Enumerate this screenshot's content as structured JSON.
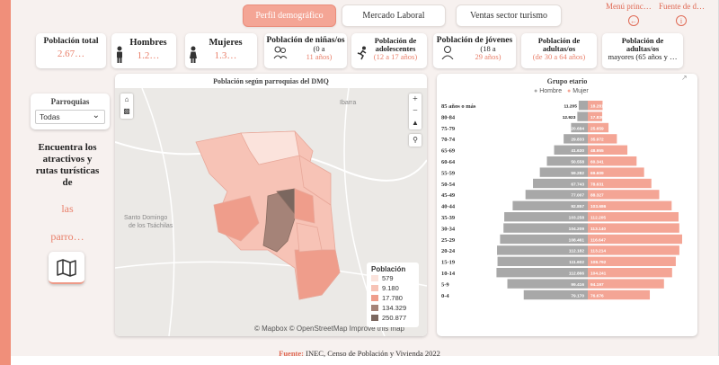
{
  "tabs": [
    {
      "label": "Perfil demográfico"
    },
    {
      "label": "Mercado Laboral"
    },
    {
      "label": "Ventas sector turismo"
    }
  ],
  "toplinks": {
    "menu": "Menú princ…",
    "fuente": "Fuente de d…"
  },
  "cards": {
    "total": {
      "title": "Población total",
      "value": "2.67…"
    },
    "hombres": {
      "title": "Hombres",
      "value": "1.2…"
    },
    "mujeres": {
      "title": "Mujeres",
      "value": "1.3…"
    },
    "ninos": {
      "title": "Población de niñas/os",
      "line2": "(0 a",
      "line3": "11 años)"
    },
    "adolescentes": {
      "title": "Población de",
      "line2": "adolescentes",
      "line3": "(12 a 17 años)"
    },
    "jovenes": {
      "title": "Población de jóvenes",
      "line2": "(18 a",
      "line3": "29 años)"
    },
    "adultos": {
      "title": "Población de",
      "line2": "adultas/os",
      "line3": "(de 30 a 64 años)"
    },
    "mayores": {
      "title": "Población de",
      "line2": "adultas/os",
      "line3": "mayores (65 años y …"
    }
  },
  "filter": {
    "label": "Parroquias",
    "selected": "Todas"
  },
  "promo": {
    "line1": "Encuentra los",
    "line2": "atractivos y",
    "line3": "rutas turísticas",
    "line4": "de",
    "line5": "las",
    "line6": "parro…"
  },
  "map": {
    "title": "Población según parroquias del DMQ",
    "place1": "Ibarra",
    "place2a": "Santo Domingo",
    "place2b": "de los Tsáchilas",
    "attribution": "© Mapbox © OpenStreetMap  Improve this map",
    "legend_title": "Población",
    "legend": [
      {
        "label": "579",
        "color": "#fbe3dc"
      },
      {
        "label": "9.180",
        "color": "#f7c3b6"
      },
      {
        "label": "17.780",
        "color": "#ef9d8b"
      },
      {
        "label": "134.329",
        "color": "#a58378"
      },
      {
        "label": "250.877",
        "color": "#7b675f"
      }
    ]
  },
  "pyramid": {
    "title": "Grupo etario",
    "legend_male": "Hombre",
    "legend_female": "Mujer",
    "male_color": "#a8a8a8",
    "female_color": "#f4a595"
  },
  "chart_data": {
    "type": "bar",
    "title": "Grupo etario",
    "categories": [
      "85 años o más",
      "80-84",
      "75-79",
      "70-74",
      "65-69",
      "60-64",
      "55-59",
      "50-54",
      "45-49",
      "40-44",
      "35-39",
      "30-34",
      "25-29",
      "20-24",
      "15-19",
      "10-14",
      "5-9",
      "0-4"
    ],
    "series": [
      {
        "name": "Hombre",
        "labels": [
          "11.205",
          "12.923",
          "20.684",
          "29.833",
          "41.630",
          "50.558",
          "59.282",
          "67.743",
          "77.007",
          "92.857",
          "103.258",
          "104.209",
          "108.461",
          "112.182",
          "111.602",
          "112.866",
          "99.416",
          "79.170"
        ],
        "values": [
          11205,
          12923,
          20684,
          29833,
          41630,
          50558,
          59282,
          67743,
          77007,
          92857,
          103258,
          104209,
          108461,
          112182,
          111602,
          112866,
          99416,
          79170
        ]
      },
      {
        "name": "Mujer",
        "labels": [
          "18.281",
          "17.830",
          "25.659",
          "35.972",
          "48.955",
          "60.341",
          "69.609",
          "78.631",
          "88.327",
          "103.686",
          "112.205",
          "113.140",
          "116.647",
          "113.214",
          "108.792",
          "104.241",
          "94.197",
          "76.676"
        ],
        "values": [
          18281,
          17830,
          25659,
          35972,
          48955,
          60341,
          69609,
          78631,
          88327,
          103686,
          112205,
          113140,
          116647,
          113214,
          108792,
          104241,
          94197,
          76676
        ]
      }
    ]
  },
  "footer": {
    "label": "Fuente:",
    "text": " INEC, Censo de Población y Vivienda 2022"
  }
}
